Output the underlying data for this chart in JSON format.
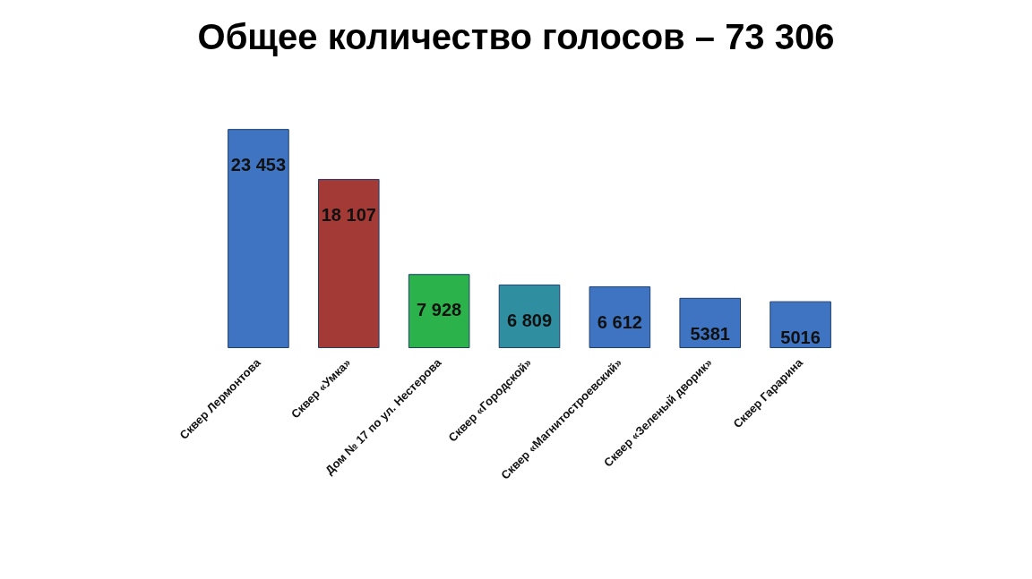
{
  "chart_data": {
    "type": "bar",
    "title": "Общее количество голосов – 73 306",
    "categories": [
      "Сквер Лермонтова",
      "Сквер «Умка»",
      "Дом № 17 по ул. Нестерова",
      "Сквер «Городской»",
      "Сквер «Магнитостроевский»",
      "Сквер «Зеленый дворик»",
      "Сквер Гарарина"
    ],
    "values": [
      23453,
      18107,
      7928,
      6809,
      6612,
      5381,
      5016
    ],
    "value_labels": [
      "23 453",
      "18 107",
      "7 928",
      "6 809",
      "6 612",
      "5381",
      "5016"
    ],
    "colors": [
      "#3f74c2",
      "#a33a36",
      "#2bb24a",
      "#2f8fa0",
      "#3f74c2",
      "#3f74c2",
      "#3f74c2"
    ]
  }
}
